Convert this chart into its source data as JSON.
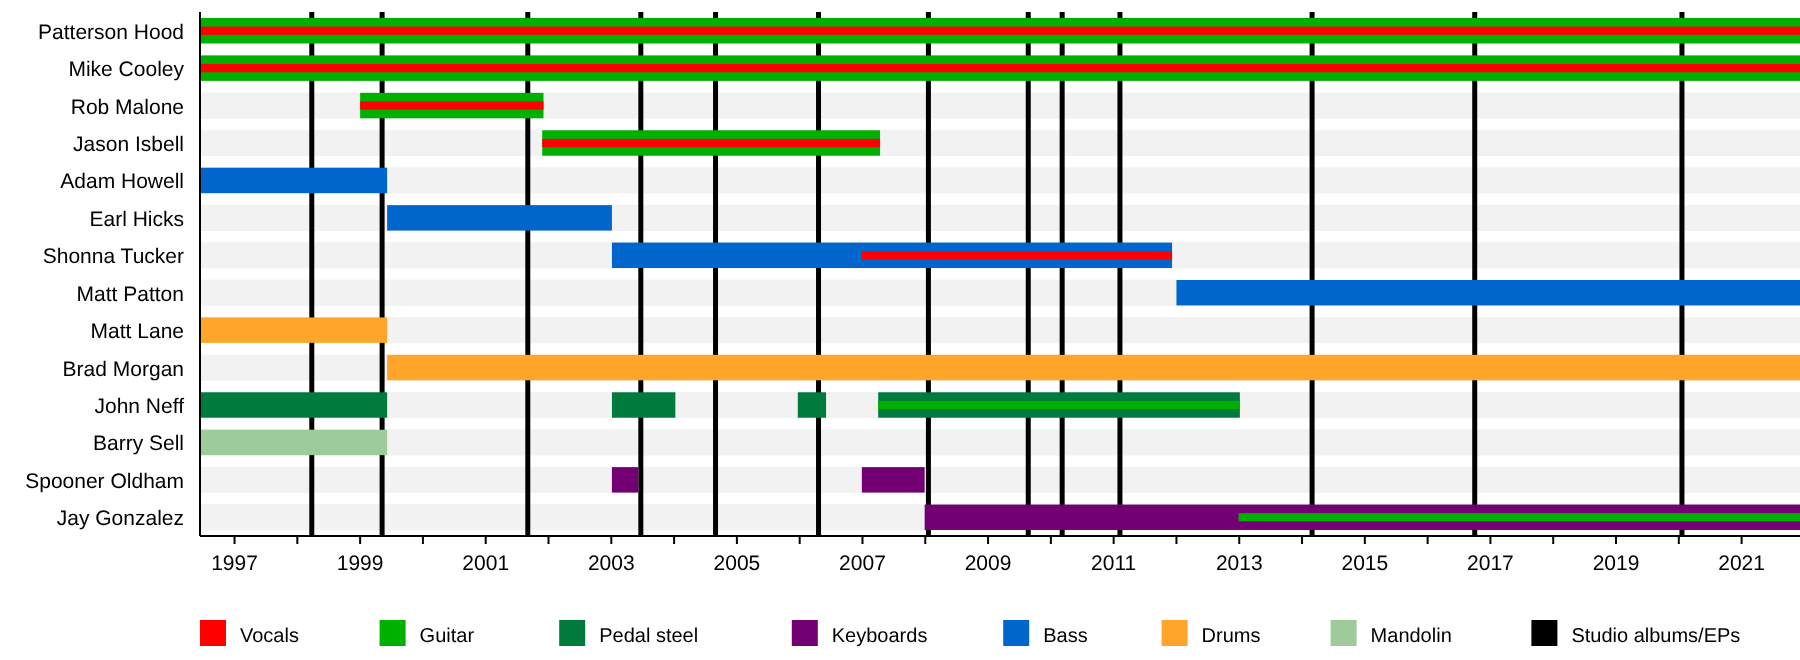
{
  "chart_data": {
    "type": "bar",
    "orientation": "horizontal",
    "legend": "bottom",
    "categories": [
      "Patterson Hood",
      "Mike Cooley",
      "Rob Malone",
      "Jason Isbell",
      "Adam Howell",
      "Earl Hicks",
      "Shonna Tucker",
      "Matt Patton",
      "Matt Lane",
      "Brad Morgan",
      "John Neff",
      "Barry Sell",
      "Spooner Oldham",
      "Jay Gonzalez"
    ],
    "xlim": [
      1996.45,
      2021.93
    ],
    "xticks": [
      1997,
      {
        "value": 1998,
        "label": null
      },
      1999,
      {
        "value": 2000,
        "label": null
      },
      2001,
      {
        "value": 2002,
        "label": null
      },
      2003,
      {
        "value": 2004,
        "label": null
      },
      2005,
      {
        "value": 2006,
        "label": null
      },
      2007,
      {
        "value": 2008,
        "label": null
      },
      2009,
      {
        "value": 2010,
        "label": null
      },
      2011,
      {
        "value": 2012,
        "label": null
      },
      2013,
      {
        "value": 2014,
        "label": null
      },
      2015,
      {
        "value": 2016,
        "label": null
      },
      2017,
      {
        "value": 2018,
        "label": null
      },
      2019,
      {
        "value": 2020,
        "label": null
      },
      2021
    ],
    "series": [
      {
        "name": "Vocals",
        "color": "#ff0000",
        "base": [
          1996.45,
          1996.45,
          1999.0,
          2001.9,
          null,
          null,
          2006.99,
          null,
          null,
          null,
          null,
          null,
          null,
          null
        ],
        "values": [
          25.48,
          25.48,
          2.92,
          5.38,
          null,
          null,
          4.94,
          null,
          null,
          null,
          null,
          null,
          null,
          null
        ]
      },
      {
        "name": "Guitar",
        "color": "#00b000",
        "base": [
          1996.45,
          1996.45,
          1999.0,
          2001.9,
          null,
          null,
          null,
          null,
          null,
          null,
          2007.25,
          null,
          null,
          2012.99
        ],
        "values": [
          25.48,
          25.48,
          2.92,
          5.38,
          null,
          null,
          null,
          null,
          null,
          null,
          5.76,
          null,
          null,
          8.94
        ]
      },
      {
        "name": "Pedal steel",
        "color": "#007a3d",
        "base": [
          null,
          null,
          null,
          null,
          null,
          null,
          null,
          null,
          null,
          null,
          1996.45,
          null,
          null,
          null
        ],
        "values": [
          null,
          null,
          null,
          null,
          null,
          null,
          null,
          null,
          null,
          null,
          2.98,
          null,
          null,
          null
        ]
      },
      {
        "color": "#007a3d",
        "base": [
          null,
          null,
          null,
          null,
          null,
          null,
          null,
          null,
          null,
          null,
          2003.01,
          null,
          null,
          null
        ],
        "values": [
          null,
          null,
          null,
          null,
          null,
          null,
          null,
          null,
          null,
          null,
          1.01,
          null,
          null,
          null
        ]
      },
      {
        "color": "#007a3d",
        "base": [
          null,
          null,
          null,
          null,
          null,
          null,
          null,
          null,
          null,
          null,
          2005.97,
          null,
          null,
          null
        ],
        "values": [
          null,
          null,
          null,
          null,
          null,
          null,
          null,
          null,
          null,
          null,
          0.45,
          null,
          null,
          null
        ]
      },
      {
        "color": "#007a3d",
        "base": [
          null,
          null,
          null,
          null,
          null,
          null,
          null,
          null,
          null,
          null,
          2007.25,
          null,
          null,
          null
        ],
        "values": [
          null,
          null,
          null,
          null,
          null,
          null,
          null,
          null,
          null,
          null,
          5.76,
          null,
          null,
          null
        ]
      },
      {
        "name": "Keyboards",
        "color": "#730073",
        "base": [
          null,
          null,
          null,
          null,
          null,
          null,
          null,
          null,
          null,
          null,
          null,
          null,
          2003.01,
          2007.99
        ],
        "values": [
          null,
          null,
          null,
          null,
          null,
          null,
          null,
          null,
          null,
          null,
          null,
          null,
          0.42,
          13.94
        ]
      },
      {
        "color": "#730073",
        "base": [
          null,
          null,
          null,
          null,
          null,
          null,
          null,
          null,
          null,
          null,
          null,
          null,
          2006.99,
          null
        ],
        "values": [
          null,
          null,
          null,
          null,
          null,
          null,
          null,
          null,
          null,
          null,
          null,
          null,
          1.0,
          null
        ]
      },
      {
        "name": "Bass",
        "color": "#0066cc",
        "base": [
          null,
          null,
          null,
          null,
          1996.45,
          1999.43,
          2003.01,
          2012.0,
          null,
          null,
          null,
          null,
          null,
          null
        ],
        "values": [
          null,
          null,
          null,
          null,
          2.98,
          3.58,
          8.92,
          9.93,
          null,
          null,
          null,
          null,
          null,
          null
        ]
      },
      {
        "name": "Drums",
        "color": "#ffa52c",
        "base": [
          null,
          null,
          null,
          null,
          null,
          null,
          null,
          null,
          1996.45,
          1999.43,
          null,
          null,
          null,
          null
        ],
        "values": [
          null,
          null,
          null,
          null,
          null,
          null,
          null,
          null,
          2.98,
          22.5,
          null,
          null,
          null,
          null
        ]
      },
      {
        "name": "Mandolin",
        "color": "#9dcc9a",
        "base": [
          null,
          null,
          null,
          null,
          null,
          null,
          null,
          null,
          null,
          null,
          null,
          1996.45,
          null,
          null
        ],
        "values": [
          null,
          null,
          null,
          null,
          null,
          null,
          null,
          null,
          null,
          null,
          null,
          2.98,
          null,
          null
        ]
      }
    ],
    "ref_lines": [
      {
        "axis": "x",
        "value": 1998.23,
        "label": "Studio albums/EPs",
        "color": "#000000"
      },
      {
        "axis": "x",
        "value": 1999.35,
        "color": "#000000"
      },
      {
        "axis": "x",
        "value": 2001.67,
        "color": "#000000"
      },
      {
        "axis": "x",
        "value": 2003.47,
        "color": "#000000"
      },
      {
        "axis": "x",
        "value": 2004.66,
        "color": "#000000"
      },
      {
        "axis": "x",
        "value": 2006.3,
        "color": "#000000"
      },
      {
        "axis": "x",
        "value": 2008.05,
        "color": "#000000"
      },
      {
        "axis": "x",
        "value": 2009.64,
        "color": "#000000"
      },
      {
        "axis": "x",
        "value": 2010.18,
        "color": "#000000"
      },
      {
        "axis": "x",
        "value": 2011.1,
        "color": "#000000"
      },
      {
        "axis": "x",
        "value": 2014.16,
        "color": "#000000"
      },
      {
        "axis": "x",
        "value": 2016.75,
        "color": "#000000"
      },
      {
        "axis": "x",
        "value": 2020.05,
        "color": "#000000"
      }
    ]
  }
}
